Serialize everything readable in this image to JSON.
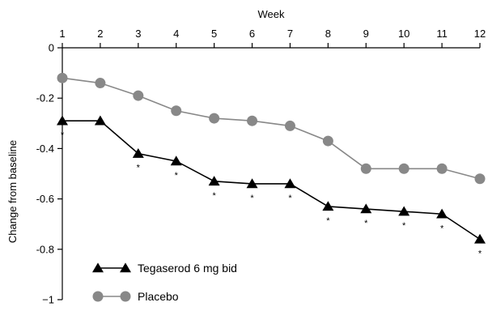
{
  "chart_data": {
    "type": "line",
    "xlabel": "Week",
    "ylabel": "Change from baseline",
    "xlim": [
      1,
      12
    ],
    "ylim": [
      -1,
      0
    ],
    "x_ticks": [
      1,
      2,
      3,
      4,
      5,
      6,
      7,
      8,
      9,
      10,
      11,
      12
    ],
    "y_ticks": [
      0,
      -0.2,
      -0.4,
      -0.6,
      -0.8,
      -1
    ],
    "y_tick_labels": [
      "0",
      "-0.2",
      "-0.4",
      "-0.6",
      "-0.8",
      "−1"
    ],
    "x": [
      1,
      2,
      3,
      4,
      5,
      6,
      7,
      8,
      9,
      10,
      11,
      12
    ],
    "series": [
      {
        "name": "Tegaserod 6 mg bid",
        "marker": "triangle",
        "color": "#000000",
        "values": [
          -0.29,
          -0.29,
          -0.42,
          -0.45,
          -0.53,
          -0.54,
          -0.54,
          -0.63,
          -0.64,
          -0.65,
          -0.66,
          -0.76
        ],
        "significance_marker": "*",
        "significant": [
          true,
          false,
          true,
          true,
          true,
          true,
          true,
          true,
          true,
          true,
          true,
          true
        ]
      },
      {
        "name": "Placebo",
        "marker": "circle",
        "color": "#888888",
        "values": [
          -0.12,
          -0.14,
          -0.19,
          -0.25,
          -0.28,
          -0.29,
          -0.31,
          -0.37,
          -0.48,
          -0.48,
          -0.48,
          -0.52
        ]
      }
    ],
    "grid": false,
    "legend_position": "bottom-left"
  }
}
